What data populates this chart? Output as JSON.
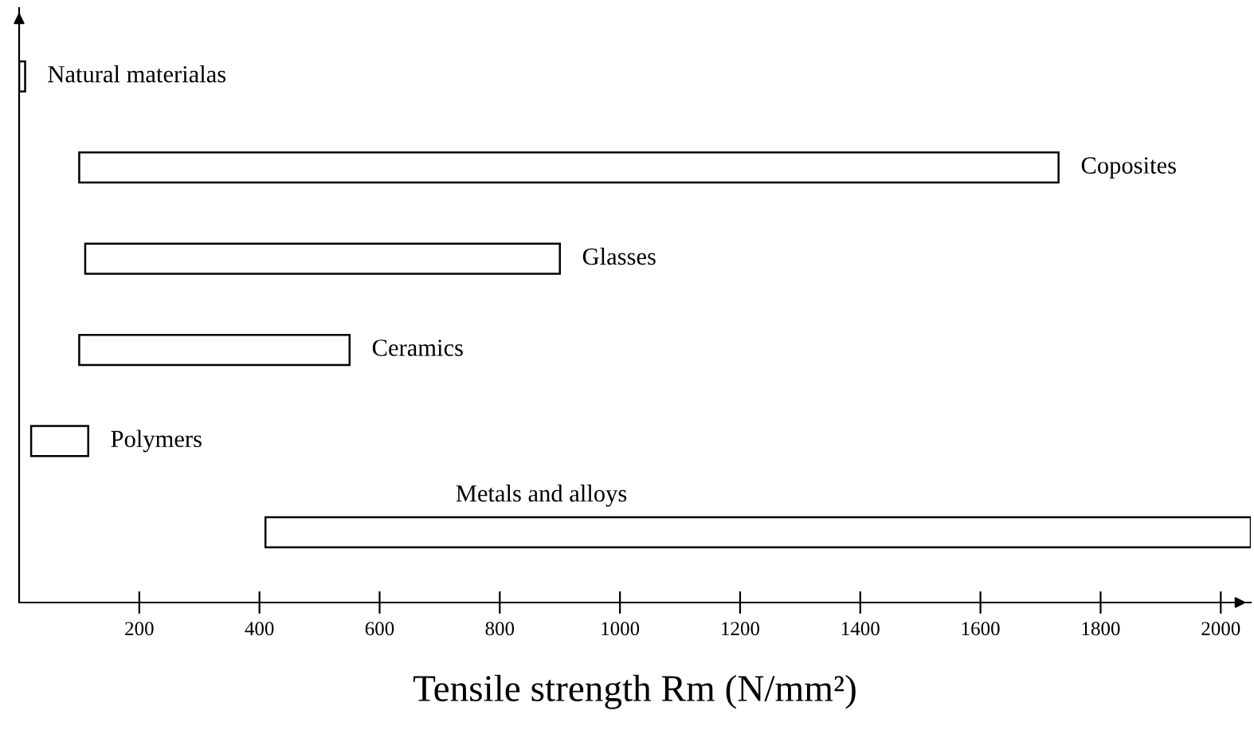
{
  "chart_data": {
    "type": "bar",
    "orientation": "horizontal",
    "xlabel": "Tensile strength Rm (N/mm²)",
    "categories": [
      "Natural materialas",
      "Coposites",
      "Glasses",
      "Ceramics",
      "Polymers",
      "Metals and alloys"
    ],
    "base": [
      0,
      100,
      110,
      100,
      20,
      410
    ],
    "values": [
      10,
      1630,
      790,
      450,
      95,
      1640
    ],
    "color": "#ffffff",
    "xlim": [
      0,
      2050
    ],
    "xticks": [
      200,
      400,
      600,
      800,
      1000,
      1200,
      1400,
      1600,
      1800,
      2000
    ],
    "grid": false,
    "legend": false,
    "tick_labels": "x"
  }
}
